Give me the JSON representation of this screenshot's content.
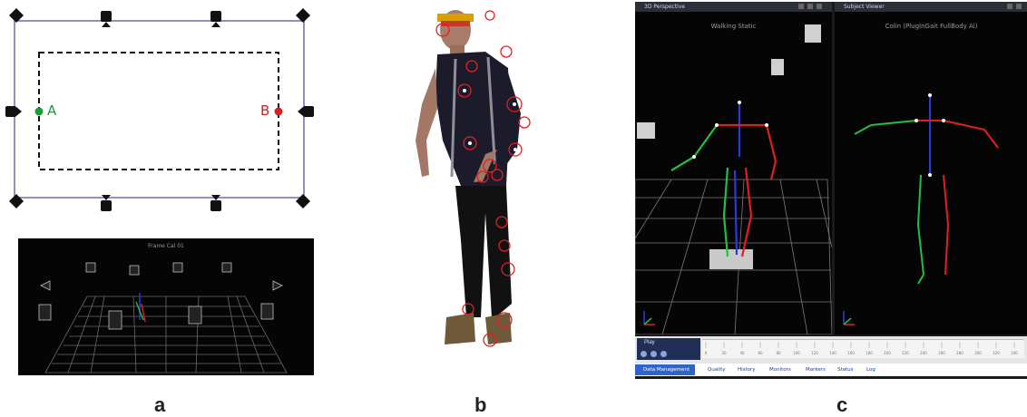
{
  "labels": {
    "a": "a",
    "b": "b",
    "c": "c"
  },
  "panel_a": {
    "point_a": "A",
    "point_b": "B",
    "calib_title": "Frame Cal 01"
  },
  "panel_c": {
    "tab_left": "3D Perspective",
    "tab_right": "Subject Viewer",
    "left_title": "Walking Static",
    "right_title": "Colin (PlugInGait FullBody Ai)",
    "play_label": "Play",
    "bottom_tabs": [
      "Data Management",
      "Quality",
      "History",
      "Monitors",
      "Markers",
      "Status",
      "Log"
    ],
    "timeline_ticks": [
      "0",
      "20",
      "40",
      "60",
      "80",
      "100",
      "120",
      "140",
      "160",
      "180",
      "200",
      "220",
      "240",
      "260",
      "280",
      "300",
      "320",
      "340"
    ]
  },
  "colors": {
    "marker_red": "#d42020",
    "marker_green": "#1b9a3a",
    "bone_red": "#e02020",
    "bone_green": "#22c040",
    "bone_blue": "#2a3ae0"
  }
}
